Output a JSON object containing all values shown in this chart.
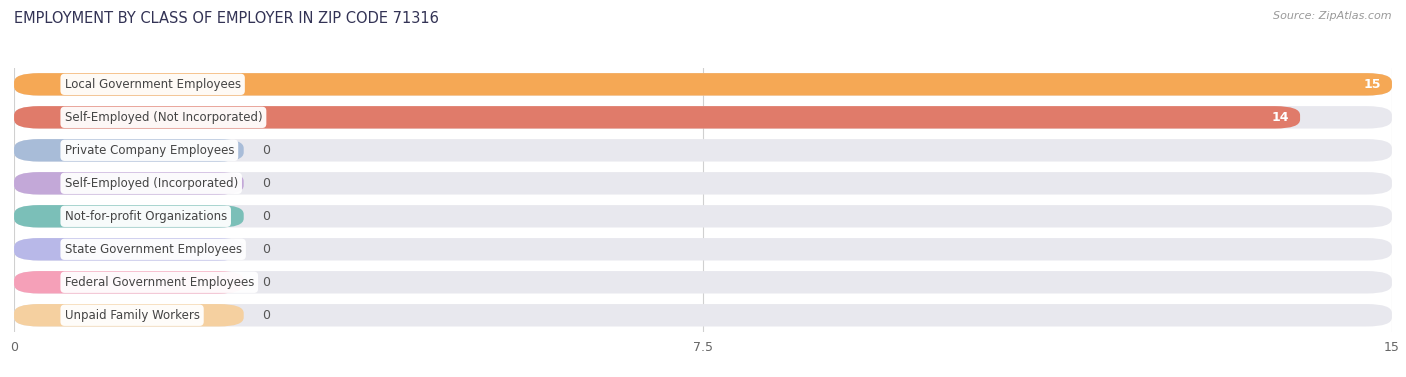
{
  "title": "EMPLOYMENT BY CLASS OF EMPLOYER IN ZIP CODE 71316",
  "source": "Source: ZipAtlas.com",
  "categories": [
    "Local Government Employees",
    "Self-Employed (Not Incorporated)",
    "Private Company Employees",
    "Self-Employed (Incorporated)",
    "Not-for-profit Organizations",
    "State Government Employees",
    "Federal Government Employees",
    "Unpaid Family Workers"
  ],
  "values": [
    15,
    14,
    0,
    0,
    0,
    0,
    0,
    0
  ],
  "bar_colors": [
    "#f5a855",
    "#e07b6a",
    "#a8bcd8",
    "#c3a8d8",
    "#7bbfb8",
    "#b8b8e8",
    "#f5a0b8",
    "#f5d0a0"
  ],
  "xlim": [
    0,
    15
  ],
  "xticks": [
    0,
    7.5,
    15
  ],
  "title_fontsize": 10.5,
  "label_fontsize": 8.5,
  "value_fontsize": 9,
  "background_color": "#ffffff",
  "grid_color": "#d0d0d0",
  "row_bg_color": "#e8e8ee",
  "bar_height": 0.68,
  "label_text_color": "#444444",
  "title_color": "#333355"
}
